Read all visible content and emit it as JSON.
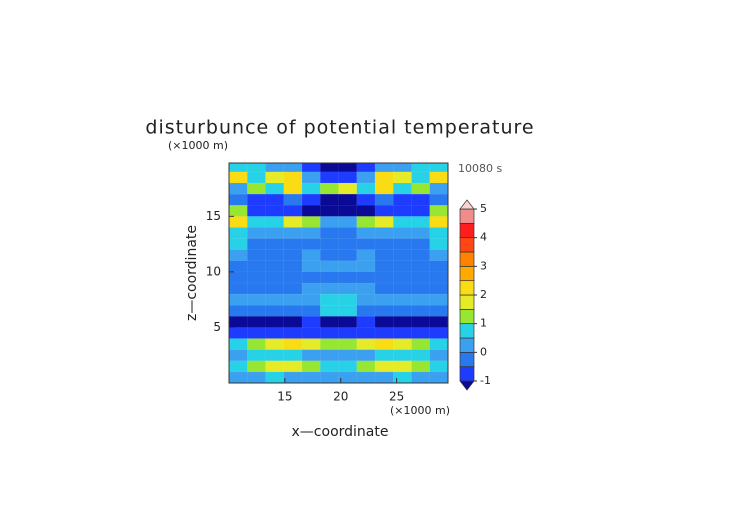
{
  "chart_data": {
    "type": "contour",
    "title": "disturbunce of potential temperature",
    "y_unit": "(×1000 m)",
    "x_unit": "(×1000 m)",
    "time_label": "10080 s",
    "xlabel": "x—coordinate",
    "ylabel": "z—coordinate",
    "xlim": [
      10,
      29.6
    ],
    "ylim": [
      0,
      19.8
    ],
    "xticks": [
      15,
      20,
      25
    ],
    "yticks": [
      5,
      10,
      15
    ],
    "x": [
      10.82,
      12.45,
      14.08,
      15.72,
      17.35,
      18.98,
      20.62,
      22.25,
      23.88,
      25.52,
      27.15,
      28.78
    ],
    "y": [
      19.5,
      18.5,
      17.5,
      16.5,
      15.5,
      14.5,
      13.5,
      12.5,
      11.5,
      10.5,
      9.5,
      8.5,
      7.5,
      6.5,
      5.5,
      4.5,
      3.5,
      2.5,
      1.5,
      0.5
    ],
    "z": [
      [
        0.8,
        0.6,
        0.3,
        0.2,
        -0.8,
        -1.1,
        -1.1,
        -0.8,
        0.2,
        0.3,
        0.6,
        0.8
      ],
      [
        2.2,
        0.5,
        1.8,
        2.0,
        0.2,
        -0.6,
        -0.6,
        0.2,
        2.0,
        1.8,
        0.5,
        2.2
      ],
      [
        0.3,
        1.0,
        0.5,
        2.1,
        0.8,
        1.2,
        1.6,
        0.8,
        2.1,
        0.5,
        1.0,
        0.3
      ],
      [
        -0.3,
        -0.6,
        -0.8,
        -0.5,
        -0.7,
        -1.1,
        -1.1,
        -0.7,
        -0.5,
        -0.8,
        -0.6,
        -0.3
      ],
      [
        1.2,
        -0.6,
        -0.9,
        -1.0,
        -1.1,
        -1.2,
        -1.2,
        -1.1,
        -1.0,
        -0.9,
        -0.6,
        1.2
      ],
      [
        2.0,
        0.6,
        0.8,
        1.5,
        1.0,
        0.3,
        0.3,
        1.0,
        1.5,
        0.8,
        0.6,
        2.0
      ],
      [
        0.6,
        0.2,
        0.1,
        0.3,
        0.2,
        -0.2,
        -0.2,
        0.2,
        0.3,
        0.1,
        0.2,
        0.6
      ],
      [
        0.9,
        -0.2,
        -0.3,
        -0.2,
        -0.3,
        -0.3,
        -0.3,
        -0.3,
        -0.2,
        -0.3,
        -0.2,
        0.9
      ],
      [
        0.2,
        -0.3,
        -0.4,
        -0.2,
        0.2,
        -0.3,
        -0.3,
        0.2,
        -0.2,
        -0.4,
        -0.3,
        0.2
      ],
      [
        -0.4,
        -0.4,
        -0.3,
        -0.4,
        0.1,
        0.2,
        0.2,
        0.1,
        -0.4,
        -0.3,
        -0.4,
        -0.4
      ],
      [
        -0.3,
        -0.4,
        -0.4,
        -0.4,
        -0.4,
        -0.3,
        -0.3,
        -0.4,
        -0.4,
        -0.4,
        -0.4,
        -0.3
      ],
      [
        -0.2,
        -0.3,
        -0.3,
        -0.2,
        0.1,
        0.2,
        0.2,
        0.1,
        -0.2,
        -0.3,
        -0.3,
        -0.2
      ],
      [
        0.4,
        0.2,
        0.3,
        0.4,
        0.3,
        0.5,
        0.5,
        0.3,
        0.4,
        0.3,
        0.2,
        0.4
      ],
      [
        -0.5,
        -0.4,
        -0.3,
        -0.2,
        -0.1,
        0.7,
        0.7,
        -0.1,
        -0.2,
        -0.3,
        -0.4,
        -0.5
      ],
      [
        -1.1,
        -1.2,
        -1.2,
        -1.1,
        -1.0,
        -1.1,
        -1.1,
        -1.0,
        -1.1,
        -1.2,
        -1.2,
        -1.1
      ],
      [
        -0.8,
        -0.9,
        -0.9,
        -0.8,
        -0.7,
        -0.6,
        -0.6,
        -0.7,
        -0.8,
        -0.9,
        -0.9,
        -0.8
      ],
      [
        0.9,
        1.2,
        1.6,
        2.0,
        1.8,
        1.3,
        1.3,
        1.8,
        2.0,
        1.6,
        1.2,
        0.9
      ],
      [
        0.3,
        0.5,
        0.6,
        0.5,
        0.4,
        0.3,
        0.3,
        0.4,
        0.5,
        0.6,
        0.5,
        0.3
      ],
      [
        0.6,
        1.0,
        1.5,
        1.8,
        1.2,
        0.7,
        0.7,
        1.2,
        1.8,
        1.5,
        1.0,
        0.6
      ],
      [
        0.2,
        0.4,
        0.5,
        0.4,
        0.3,
        0.2,
        0.2,
        0.3,
        0.4,
        0.5,
        0.4,
        0.2
      ]
    ],
    "levels": [
      -1,
      -0.5,
      0,
      0.5,
      1,
      1.5,
      2,
      2.5,
      3,
      3.5,
      4,
      4.5,
      5
    ],
    "colors": [
      "#0a0a96",
      "#1e3cff",
      "#2878f0",
      "#3ca0f0",
      "#28d2e6",
      "#96e632",
      "#e6eb28",
      "#fadc14",
      "#ffaa00",
      "#ff8200",
      "#ff4614",
      "#ff1e1e",
      "#f08c8c",
      "#fad2d2"
    ],
    "colorbar_ticks": [
      -1,
      0,
      1,
      2,
      3,
      4,
      5
    ]
  }
}
